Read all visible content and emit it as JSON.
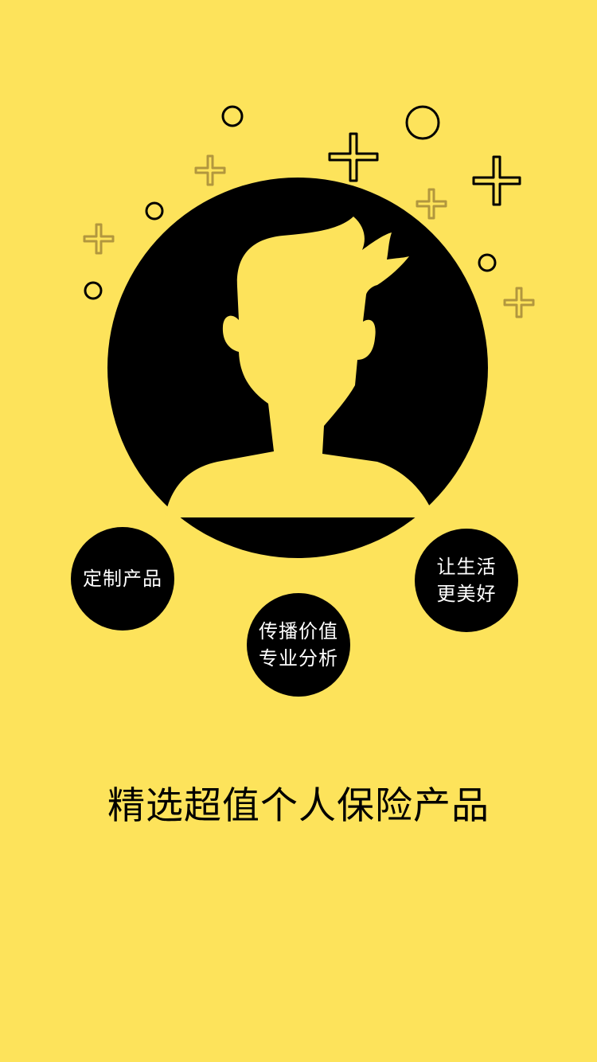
{
  "colors": {
    "background": "#FDE35B",
    "foreground": "#000000",
    "bubble_text": "#FFFFFF",
    "faded_sparkle": "#A48A3A"
  },
  "illustration": {
    "icon": "user-avatar-silhouette-icon",
    "decorations": [
      "sparkle-plus-icon",
      "sparkle-circle-icon"
    ]
  },
  "bubbles": {
    "custom": {
      "line1": "定制产品"
    },
    "value": {
      "line1": "传播价值",
      "line2": "专业分析"
    },
    "life": {
      "line1": "让生活",
      "line2": "更美好"
    }
  },
  "headline": "精选超值个人保险产品"
}
